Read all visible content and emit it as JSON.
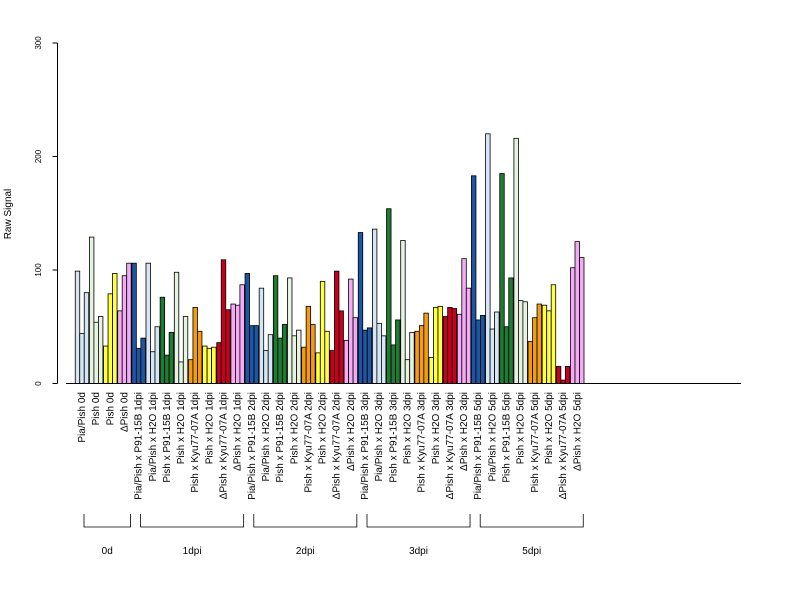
{
  "chart_data": {
    "type": "bar",
    "ylabel": "Raw Signal",
    "ylim": [
      0,
      300
    ],
    "yticks": [
      0,
      100,
      200,
      300
    ],
    "categories": [
      {
        "label": "Pia/Pish 0d",
        "color": "#d6e6f5",
        "values": [
          99,
          44,
          80
        ]
      },
      {
        "label": "Pish 0d",
        "color": "#e6f3e0",
        "values": [
          129,
          54,
          59
        ]
      },
      {
        "label": "Pish 0d",
        "color": "#ffff44",
        "values": [
          33,
          79,
          97
        ]
      },
      {
        "label": "ΔPish 0d",
        "color": "#f4aaf4",
        "values": [
          64,
          95,
          106
        ]
      },
      {
        "label": "Pia/Pish x P91-15B 1dpi",
        "color": "#1f56a3",
        "values": [
          106,
          31,
          40
        ]
      },
      {
        "label": "Pia/Pish x H2O 1dpi",
        "color": "#d6e6f5",
        "values": [
          106,
          28,
          50
        ]
      },
      {
        "label": "Pish x P91-15B 1dpi",
        "color": "#1f7a32",
        "values": [
          76,
          25,
          45
        ]
      },
      {
        "label": "Pish x H2O 1dpi",
        "color": "#e6f3e0",
        "values": [
          98,
          19,
          59
        ]
      },
      {
        "label": "Pish x Kyu77-07A 1dpi",
        "color": "#f39c12",
        "values": [
          21,
          67,
          46
        ]
      },
      {
        "label": "Pish x H2O 1dpi",
        "color": "#ffff44",
        "values": [
          33,
          31,
          32
        ]
      },
      {
        "label": "ΔPish x Kyu77-07A 1dpi",
        "color": "#c8001e",
        "values": [
          36,
          109,
          65
        ]
      },
      {
        "label": "ΔPish x H2O 1dpi",
        "color": "#f4aaf4",
        "values": [
          70,
          69,
          87
        ]
      },
      {
        "label": "Pia/Pish x P91-15B 2dpi",
        "color": "#1f56a3",
        "values": [
          97,
          51,
          51
        ]
      },
      {
        "label": "Pia/Pish x H2O 2dpi",
        "color": "#d6e6f5",
        "values": [
          84,
          29,
          43
        ]
      },
      {
        "label": "Pish x P91-15B 2dpi",
        "color": "#1f7a32",
        "values": [
          95,
          40,
          52
        ]
      },
      {
        "label": "Pish x H2O 2dpi",
        "color": "#e6f3e0",
        "values": [
          93,
          42,
          47
        ]
      },
      {
        "label": "Pish x Kyu77-07A 2dpi",
        "color": "#f39c12",
        "values": [
          32,
          68,
          52
        ]
      },
      {
        "label": "Pish x H2O 2dpi",
        "color": "#ffff44",
        "values": [
          27,
          90,
          46
        ]
      },
      {
        "label": "ΔPish x Kyu77-07A 2dpi",
        "color": "#c8001e",
        "values": [
          29,
          99,
          64
        ]
      },
      {
        "label": "ΔPish x H2O 2dpi",
        "color": "#f4aaf4",
        "values": [
          38,
          92,
          58
        ]
      },
      {
        "label": "Pia/Pish x P91-15B 3dpi",
        "color": "#1f56a3",
        "values": [
          133,
          47,
          49
        ]
      },
      {
        "label": "Pia/Pish x H2O 3dpi",
        "color": "#d6e6f5",
        "values": [
          136,
          53,
          42
        ]
      },
      {
        "label": "Pish x P91-15B 3dpi",
        "color": "#1f7a32",
        "values": [
          154,
          34,
          56
        ]
      },
      {
        "label": "Pish x H2O 3dpi",
        "color": "#e6f3e0",
        "values": [
          126,
          21,
          45
        ]
      },
      {
        "label": "Pish x Kyu77-07A 3dpi",
        "color": "#f39c12",
        "values": [
          46,
          51,
          62
        ]
      },
      {
        "label": "Pish x H2O 3dpi",
        "color": "#ffff44",
        "values": [
          23,
          67,
          68
        ]
      },
      {
        "label": "ΔPish x Kyu77-07A 3dpi",
        "color": "#c8001e",
        "values": [
          59,
          67,
          66
        ]
      },
      {
        "label": "ΔPish x H2O 3dpi",
        "color": "#f4aaf4",
        "values": [
          61,
          110,
          84
        ]
      },
      {
        "label": "Pia/Pish x P91-15B 5dpi",
        "color": "#1f56a3",
        "values": [
          183,
          56,
          60
        ]
      },
      {
        "label": "Pia/Pish x H2O 5dpi",
        "color": "#d6e6f5",
        "values": [
          220,
          48,
          63
        ]
      },
      {
        "label": "Pish x P91-15B 5dpi",
        "color": "#1f7a32",
        "values": [
          185,
          50,
          93
        ]
      },
      {
        "label": "Pish x H2O 5dpi",
        "color": "#e6f3e0",
        "values": [
          216,
          73,
          72
        ]
      },
      {
        "label": "Pish x Kyu77-07A 5dpi",
        "color": "#f39c12",
        "values": [
          37,
          58,
          70
        ]
      },
      {
        "label": "Pish x H2O 5dpi",
        "color": "#ffff44",
        "values": [
          69,
          64,
          87
        ]
      },
      {
        "label": "ΔPish x Kyu77-07A 5dpi",
        "color": "#c8001e",
        "values": [
          15,
          3,
          15
        ]
      },
      {
        "label": "ΔPish x H2O 5dpi",
        "color": "#f4aaf4",
        "values": [
          102,
          125,
          111
        ]
      }
    ],
    "groups": [
      {
        "label": "0d",
        "first": 0,
        "last": 3
      },
      {
        "label": "1dpi",
        "first": 4,
        "last": 11
      },
      {
        "label": "2dpi",
        "first": 12,
        "last": 19
      },
      {
        "label": "3dpi",
        "first": 20,
        "last": 27
      },
      {
        "label": "5dpi",
        "first": 28,
        "last": 35
      }
    ]
  }
}
